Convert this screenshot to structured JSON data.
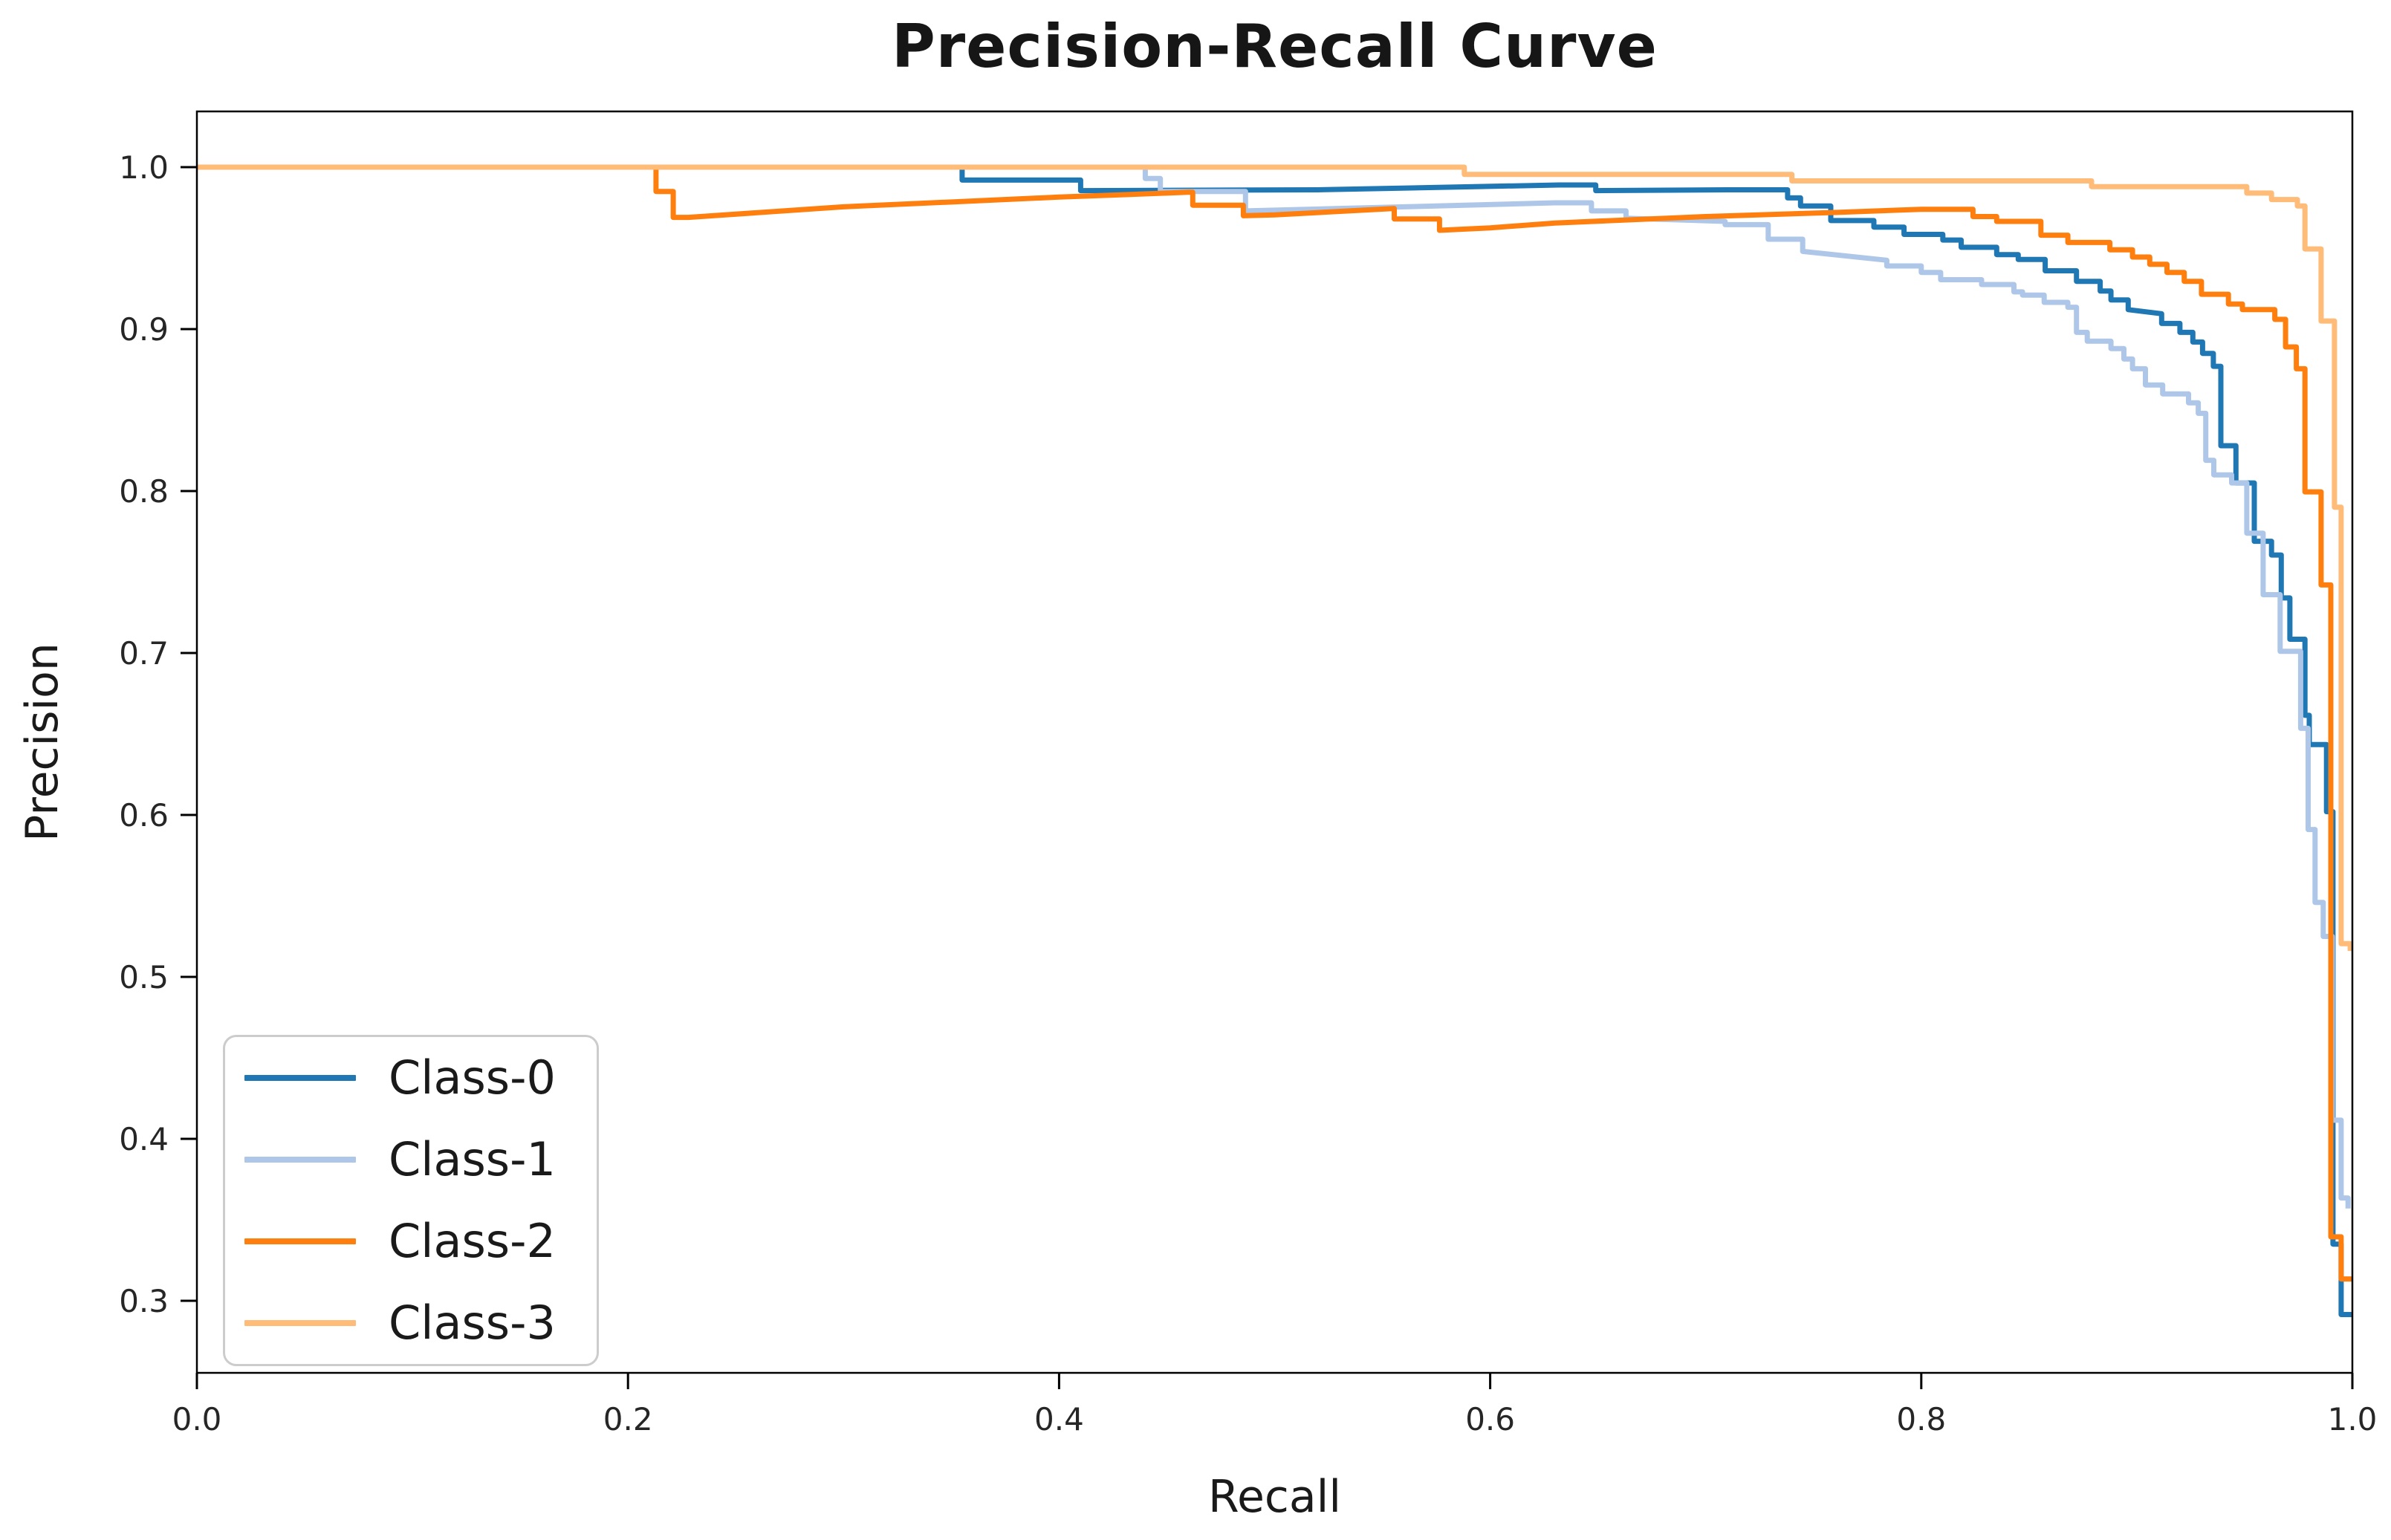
{
  "page": {
    "background": "#ffffff"
  },
  "chart_data": {
    "type": "line",
    "subtype": "precision-recall step curves",
    "title": "Precision-Recall Curve",
    "xlabel": "Recall",
    "ylabel": "Precision",
    "xlim": [
      0.0,
      1.0
    ],
    "ylim": [
      0.2555,
      1.0344
    ],
    "grid": false,
    "axis_color": "#000000",
    "tick_label_color": "#262626",
    "xticks": {
      "values": [
        0.0,
        0.2,
        0.4,
        0.6,
        0.8,
        1.0
      ],
      "labels": [
        "0.0",
        "0.2",
        "0.4",
        "0.6",
        "0.8",
        "1.0"
      ]
    },
    "yticks": {
      "values": [
        0.3,
        0.4,
        0.5,
        0.6,
        0.7,
        0.8,
        0.9,
        1.0
      ],
      "labels": [
        "0.3",
        "0.4",
        "0.5",
        "0.6",
        "0.7",
        "0.8",
        "0.9",
        "1.0"
      ]
    },
    "legend": {
      "position": "lower left",
      "frame_color": "#cccccc",
      "entries": [
        "Class-0",
        "Class-1",
        "Class-2",
        "Class-3"
      ]
    },
    "series": [
      {
        "name": "Class-0",
        "color": "#1f77b4",
        "points": [
          [
            0,
            1
          ],
          [
            0.355,
            1
          ],
          [
            0.355,
            0.992
          ],
          [
            0.41,
            0.992
          ],
          [
            0.41,
            0.9855
          ],
          [
            0.52,
            0.986
          ],
          [
            0.632,
            0.989
          ],
          [
            0.649,
            0.989
          ],
          [
            0.649,
            0.9855
          ],
          [
            0.71,
            0.986
          ],
          [
            0.738,
            0.986
          ],
          [
            0.738,
            0.981
          ],
          [
            0.744,
            0.981
          ],
          [
            0.744,
            0.976
          ],
          [
            0.758,
            0.976
          ],
          [
            0.758,
            0.967
          ],
          [
            0.778,
            0.967
          ],
          [
            0.778,
            0.963
          ],
          [
            0.792,
            0.963
          ],
          [
            0.792,
            0.9585
          ],
          [
            0.81,
            0.9585
          ],
          [
            0.81,
            0.955
          ],
          [
            0.8185,
            0.955
          ],
          [
            0.8185,
            0.9505
          ],
          [
            0.835,
            0.9505
          ],
          [
            0.835,
            0.946
          ],
          [
            0.845,
            0.946
          ],
          [
            0.845,
            0.943
          ],
          [
            0.8575,
            0.943
          ],
          [
            0.8575,
            0.936
          ],
          [
            0.872,
            0.936
          ],
          [
            0.872,
            0.9295
          ],
          [
            0.883,
            0.9295
          ],
          [
            0.883,
            0.9235
          ],
          [
            0.888,
            0.9235
          ],
          [
            0.888,
            0.918
          ],
          [
            0.896,
            0.918
          ],
          [
            0.896,
            0.912
          ],
          [
            0.9115,
            0.9095
          ],
          [
            0.9115,
            0.9035
          ],
          [
            0.92,
            0.9035
          ],
          [
            0.92,
            0.898
          ],
          [
            0.926,
            0.898
          ],
          [
            0.926,
            0.892
          ],
          [
            0.9305,
            0.892
          ],
          [
            0.9305,
            0.885
          ],
          [
            0.9355,
            0.885
          ],
          [
            0.9355,
            0.877
          ],
          [
            0.939,
            0.877
          ],
          [
            0.939,
            0.828
          ],
          [
            0.946,
            0.828
          ],
          [
            0.946,
            0.805
          ],
          [
            0.9545,
            0.805
          ],
          [
            0.9545,
            0.769
          ],
          [
            0.9625,
            0.769
          ],
          [
            0.9625,
            0.7605
          ],
          [
            0.967,
            0.7605
          ],
          [
            0.967,
            0.734
          ],
          [
            0.971,
            0.734
          ],
          [
            0.971,
            0.7085
          ],
          [
            0.978,
            0.7085
          ],
          [
            0.978,
            0.6615
          ],
          [
            0.98,
            0.6615
          ],
          [
            0.98,
            0.6435
          ],
          [
            0.988,
            0.6435
          ],
          [
            0.988,
            0.602
          ],
          [
            0.991,
            0.602
          ],
          [
            0.991,
            0.335
          ],
          [
            0.9948,
            0.335
          ],
          [
            0.9948,
            0.2915
          ],
          [
            1,
            0.2915
          ]
        ]
      },
      {
        "name": "Class-1",
        "color": "#aec7e8",
        "points": [
          [
            0,
            1
          ],
          [
            0.44,
            1
          ],
          [
            0.44,
            0.993
          ],
          [
            0.447,
            0.993
          ],
          [
            0.447,
            0.985
          ],
          [
            0.4865,
            0.985
          ],
          [
            0.4865,
            0.973
          ],
          [
            0.56,
            0.9755
          ],
          [
            0.63,
            0.978
          ],
          [
            0.647,
            0.978
          ],
          [
            0.647,
            0.973
          ],
          [
            0.663,
            0.973
          ],
          [
            0.663,
            0.9685
          ],
          [
            0.709,
            0.9665
          ],
          [
            0.709,
            0.9645
          ],
          [
            0.729,
            0.9645
          ],
          [
            0.729,
            0.9555
          ],
          [
            0.745,
            0.9555
          ],
          [
            0.745,
            0.948
          ],
          [
            0.784,
            0.9425
          ],
          [
            0.784,
            0.939
          ],
          [
            0.8,
            0.939
          ],
          [
            0.8,
            0.935
          ],
          [
            0.809,
            0.935
          ],
          [
            0.809,
            0.9305
          ],
          [
            0.828,
            0.9305
          ],
          [
            0.828,
            0.9275
          ],
          [
            0.843,
            0.9275
          ],
          [
            0.843,
            0.923
          ],
          [
            0.847,
            0.923
          ],
          [
            0.847,
            0.921
          ],
          [
            0.857,
            0.921
          ],
          [
            0.857,
            0.9165
          ],
          [
            0.868,
            0.9165
          ],
          [
            0.868,
            0.9135
          ],
          [
            0.872,
            0.9135
          ],
          [
            0.872,
            0.898
          ],
          [
            0.877,
            0.898
          ],
          [
            0.877,
            0.8925
          ],
          [
            0.888,
            0.8925
          ],
          [
            0.888,
            0.888
          ],
          [
            0.894,
            0.888
          ],
          [
            0.894,
            0.8815
          ],
          [
            0.898,
            0.8815
          ],
          [
            0.898,
            0.8755
          ],
          [
            0.904,
            0.8755
          ],
          [
            0.904,
            0.8655
          ],
          [
            0.912,
            0.8655
          ],
          [
            0.912,
            0.86
          ],
          [
            0.924,
            0.86
          ],
          [
            0.924,
            0.8545
          ],
          [
            0.9285,
            0.8545
          ],
          [
            0.9285,
            0.848
          ],
          [
            0.932,
            0.848
          ],
          [
            0.932,
            0.819
          ],
          [
            0.9357,
            0.819
          ],
          [
            0.9357,
            0.81
          ],
          [
            0.944,
            0.81
          ],
          [
            0.944,
            0.805
          ],
          [
            0.951,
            0.805
          ],
          [
            0.951,
            0.774
          ],
          [
            0.9586,
            0.774
          ],
          [
            0.9586,
            0.736
          ],
          [
            0.9665,
            0.736
          ],
          [
            0.9665,
            0.701
          ],
          [
            0.976,
            0.701
          ],
          [
            0.976,
            0.6535
          ],
          [
            0.9795,
            0.6535
          ],
          [
            0.9795,
            0.591
          ],
          [
            0.9827,
            0.591
          ],
          [
            0.9827,
            0.546
          ],
          [
            0.9865,
            0.546
          ],
          [
            0.9865,
            0.525
          ],
          [
            0.9907,
            0.525
          ],
          [
            0.9907,
            0.4115
          ],
          [
            0.9948,
            0.4115
          ],
          [
            0.9948,
            0.3635
          ],
          [
            0.998,
            0.3635
          ],
          [
            0.998,
            0.357
          ]
        ]
      },
      {
        "name": "Class-2",
        "color": "#ff7f0e",
        "points": [
          [
            0,
            1
          ],
          [
            0.213,
            1
          ],
          [
            0.213,
            0.985
          ],
          [
            0.221,
            0.985
          ],
          [
            0.221,
            0.969
          ],
          [
            0.228,
            0.969
          ],
          [
            0.3,
            0.9755
          ],
          [
            0.4,
            0.9815
          ],
          [
            0.46,
            0.9845
          ],
          [
            0.462,
            0.9845
          ],
          [
            0.462,
            0.9765
          ],
          [
            0.4855,
            0.9765
          ],
          [
            0.4855,
            0.97
          ],
          [
            0.5,
            0.9705
          ],
          [
            0.5555,
            0.9745
          ],
          [
            0.5555,
            0.968
          ],
          [
            0.5765,
            0.968
          ],
          [
            0.5765,
            0.961
          ],
          [
            0.6,
            0.9625
          ],
          [
            0.63,
            0.9655
          ],
          [
            0.7,
            0.9695
          ],
          [
            0.76,
            0.972
          ],
          [
            0.8,
            0.974
          ],
          [
            0.824,
            0.974
          ],
          [
            0.824,
            0.9695
          ],
          [
            0.835,
            0.9695
          ],
          [
            0.835,
            0.9665
          ],
          [
            0.8555,
            0.9665
          ],
          [
            0.8555,
            0.958
          ],
          [
            0.868,
            0.958
          ],
          [
            0.868,
            0.9535
          ],
          [
            0.8875,
            0.9535
          ],
          [
            0.8875,
            0.949
          ],
          [
            0.898,
            0.949
          ],
          [
            0.898,
            0.9445
          ],
          [
            0.906,
            0.9445
          ],
          [
            0.906,
            0.94
          ],
          [
            0.914,
            0.94
          ],
          [
            0.914,
            0.935
          ],
          [
            0.922,
            0.935
          ],
          [
            0.922,
            0.9295
          ],
          [
            0.93,
            0.9295
          ],
          [
            0.93,
            0.9215
          ],
          [
            0.9425,
            0.9215
          ],
          [
            0.9425,
            0.9155
          ],
          [
            0.949,
            0.9155
          ],
          [
            0.949,
            0.912
          ],
          [
            0.964,
            0.912
          ],
          [
            0.964,
            0.906
          ],
          [
            0.969,
            0.906
          ],
          [
            0.969,
            0.889
          ],
          [
            0.974,
            0.889
          ],
          [
            0.974,
            0.8755
          ],
          [
            0.978,
            0.8755
          ],
          [
            0.978,
            0.7995
          ],
          [
            0.9855,
            0.7995
          ],
          [
            0.9855,
            0.742
          ],
          [
            0.99,
            0.742
          ],
          [
            0.99,
            0.3395
          ],
          [
            0.9948,
            0.3395
          ],
          [
            0.9948,
            0.3135
          ],
          [
            1,
            0.3135
          ]
        ]
      },
      {
        "name": "Class-3",
        "color": "#ffbb78",
        "points": [
          [
            0,
            1
          ],
          [
            0.588,
            1
          ],
          [
            0.588,
            0.9955
          ],
          [
            0.74,
            0.9955
          ],
          [
            0.74,
            0.9915
          ],
          [
            0.879,
            0.9915
          ],
          [
            0.879,
            0.988
          ],
          [
            0.951,
            0.988
          ],
          [
            0.951,
            0.984
          ],
          [
            0.9625,
            0.984
          ],
          [
            0.9625,
            0.98
          ],
          [
            0.9745,
            0.98
          ],
          [
            0.9745,
            0.976
          ],
          [
            0.978,
            0.976
          ],
          [
            0.978,
            0.9495
          ],
          [
            0.9855,
            0.9495
          ],
          [
            0.9855,
            0.905
          ],
          [
            0.9917,
            0.905
          ],
          [
            0.9917,
            0.79
          ],
          [
            0.9948,
            0.79
          ],
          [
            0.9948,
            0.5205
          ],
          [
            0.999,
            0.5205
          ],
          [
            0.999,
            0.516
          ]
        ]
      }
    ]
  }
}
